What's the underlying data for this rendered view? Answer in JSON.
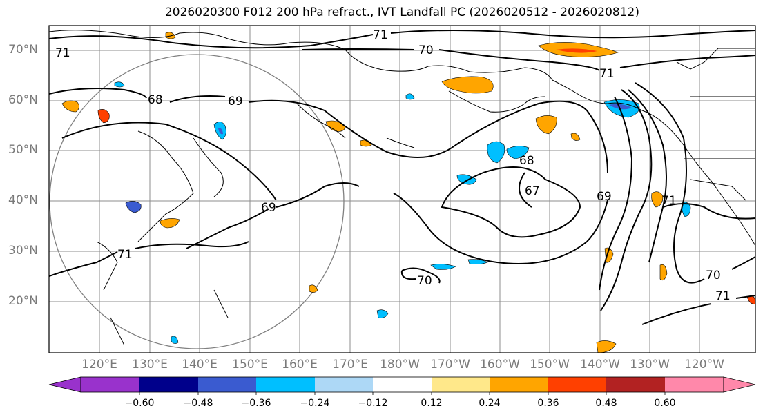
{
  "title": "2026020300 F012 200 hPa refract., IVT Landfall PC (2026020512 - 2026020812)",
  "lat_labels": [
    "70°N",
    "60°N",
    "50°N",
    "40°N",
    "30°N",
    "20°N"
  ],
  "lon_labels": [
    "120°E",
    "130°E",
    "140°E",
    "150°E",
    "160°E",
    "170°E",
    "180°W",
    "170°W",
    "160°W",
    "150°W",
    "140°W",
    "130°W",
    "120°W"
  ],
  "contour_labels": [
    "71",
    "70",
    "71",
    "68",
    "69",
    "69",
    "68",
    "67",
    "69",
    "71",
    "70",
    "70",
    "71",
    "71",
    "71"
  ],
  "colorbar": {
    "ticks": [
      "−0.60",
      "−0.48",
      "−0.36",
      "−0.24",
      "−0.12",
      "0.12",
      "0.24",
      "0.36",
      "0.48",
      "0.60"
    ],
    "colors": [
      "#9932cc",
      "#00008b",
      "#3a5bd0",
      "#00bfff",
      "#add8f6",
      "#ffffff",
      "#ffe88a",
      "#ffa500",
      "#ff4000",
      "#b22222",
      "#ff88aa"
    ]
  },
  "colors": {
    "contour": "#000000",
    "grid": "#8c8c8c",
    "circle": "#808080",
    "coast": "#000000"
  }
}
